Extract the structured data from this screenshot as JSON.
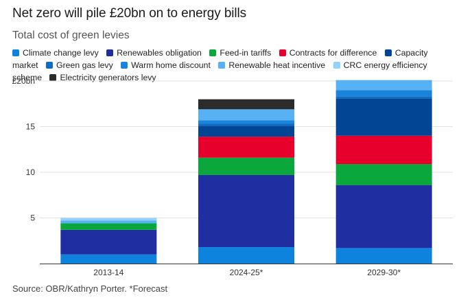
{
  "title": "Net zero will pile £20bn on to energy bills",
  "subtitle": "Total cost of green levies",
  "source": "Source: OBR/Kathryn Porter. *Forecast",
  "chart_data": {
    "type": "bar",
    "stacked": true,
    "categories": [
      "2013-14",
      "2024-25*",
      "2029-30*"
    ],
    "y_ticks": [
      {
        "value": 5,
        "label": "5"
      },
      {
        "value": 10,
        "label": "10"
      },
      {
        "value": 15,
        "label": "15"
      },
      {
        "value": 20,
        "label": "£20bn"
      }
    ],
    "ylim": [
      0,
      20
    ],
    "grid": true,
    "legend_position": "top",
    "series": [
      {
        "name": "Climate change levy",
        "color": "#0d83dd",
        "values": [
          1.0,
          1.8,
          1.7
        ]
      },
      {
        "name": "Renewables obligation",
        "color": "#1f2ea0",
        "values": [
          2.7,
          7.9,
          6.9
        ]
      },
      {
        "name": "Feed-in tariffs",
        "color": "#0aa83c",
        "values": [
          0.7,
          1.9,
          2.3
        ]
      },
      {
        "name": "Contracts for difference",
        "color": "#e8002d",
        "values": [
          0.0,
          2.3,
          3.1
        ]
      },
      {
        "name": "Capacity market",
        "color": "#034595",
        "values": [
          0.0,
          1.2,
          4.1
        ]
      },
      {
        "name": "Green gas levy",
        "color": "#0f6cc4",
        "values": [
          0.0,
          0.2,
          0.2
        ]
      },
      {
        "name": "Warm home discount",
        "color": "#1a84dc",
        "values": [
          0.0,
          0.4,
          0.7
        ]
      },
      {
        "name": "Renewable heat incentive",
        "color": "#57b1f2",
        "values": [
          0.3,
          1.2,
          1.1
        ]
      },
      {
        "name": "CRC energy efficiency scheme",
        "color": "#93d3fb",
        "values": [
          0.3,
          0.0,
          0.0
        ]
      },
      {
        "name": "Electricity generators levy",
        "color": "#2b2b2b",
        "values": [
          0.0,
          1.1,
          0.0
        ]
      }
    ]
  }
}
